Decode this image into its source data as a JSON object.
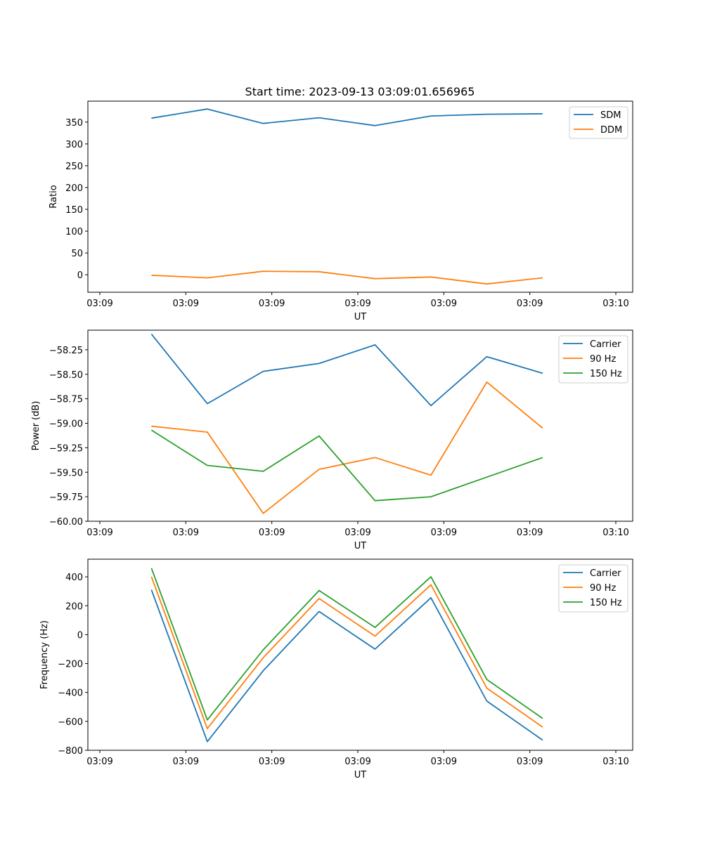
{
  "figure": {
    "title": "Start time: 2023-09-13 03:09:01.656965"
  },
  "chart_data": [
    {
      "type": "line",
      "title": "Start time: 2023-09-13 03:09:01.656965",
      "xlabel": "UT",
      "ylabel": "Ratio",
      "x": [
        0.6,
        1.25,
        1.9,
        2.55,
        3.2,
        3.85,
        4.5,
        5.15
      ],
      "xlim": [
        0.0,
        5.9
      ],
      "xticks": [
        0.0,
        1.0,
        2.0,
        3.0,
        4.0,
        5.0,
        6.0
      ],
      "xticklabels": [
        "03:09",
        "03:09",
        "03:09",
        "03:09",
        "03:09",
        "03:09",
        "03:10"
      ],
      "ylim": [
        -40,
        398
      ],
      "yticks": [
        0,
        50,
        100,
        150,
        200,
        250,
        300,
        350
      ],
      "legend_position": "top-right",
      "series": [
        {
          "name": "SDM",
          "color": "#1f77b4",
          "values": [
            359,
            380,
            347,
            360,
            342,
            364,
            368,
            369
          ]
        },
        {
          "name": "DDM",
          "color": "#ff7f0e",
          "values": [
            -1,
            -7,
            8,
            7,
            -9,
            -5,
            -21,
            -7
          ]
        }
      ]
    },
    {
      "type": "line",
      "xlabel": "UT",
      "ylabel": "Power (dB)",
      "x": [
        0.6,
        1.25,
        1.9,
        2.55,
        3.2,
        3.85,
        4.5,
        5.15
      ],
      "xlim": [
        0.0,
        5.9
      ],
      "xticks": [
        0.0,
        1.0,
        2.0,
        3.0,
        4.0,
        5.0,
        6.0
      ],
      "xticklabels": [
        "03:09",
        "03:09",
        "03:09",
        "03:09",
        "03:09",
        "03:09",
        "03:10"
      ],
      "ylim": [
        -60.0,
        -58.05
      ],
      "yticks": [
        -60.0,
        -59.75,
        -59.5,
        -59.25,
        -59.0,
        -58.75,
        -58.5,
        -58.25
      ],
      "yticklabels": [
        "−60.00",
        "−59.75",
        "−59.50",
        "−59.25",
        "−59.00",
        "−58.75",
        "−58.50",
        "−58.25"
      ],
      "legend_position": "top-right",
      "series": [
        {
          "name": "Carrier",
          "color": "#1f77b4",
          "values": [
            -58.09,
            -58.8,
            -58.47,
            -58.39,
            -58.2,
            -58.82,
            -58.32,
            -58.49
          ]
        },
        {
          "name": "90 Hz",
          "color": "#ff7f0e",
          "values": [
            -59.03,
            -59.09,
            -59.92,
            -59.47,
            -59.35,
            -59.53,
            -58.58,
            -59.05
          ]
        },
        {
          "name": "150 Hz",
          "color": "#2ca02c",
          "values": [
            -59.07,
            -59.43,
            -59.49,
            -59.13,
            -59.79,
            -59.75,
            -59.55,
            -59.35
          ]
        }
      ]
    },
    {
      "type": "line",
      "xlabel": "UT",
      "ylabel": "Frequency (Hz)",
      "x": [
        0.6,
        1.25,
        1.9,
        2.55,
        3.2,
        3.85,
        4.5,
        5.15
      ],
      "xlim": [
        0.0,
        5.9
      ],
      "xticks": [
        0.0,
        1.0,
        2.0,
        3.0,
        4.0,
        5.0,
        6.0
      ],
      "xticklabels": [
        "03:09",
        "03:09",
        "03:09",
        "03:09",
        "03:09",
        "03:09",
        "03:10"
      ],
      "ylim": [
        -800,
        522
      ],
      "yticks": [
        -800,
        -600,
        -400,
        -200,
        0,
        200,
        400
      ],
      "yticklabels": [
        "−800",
        "−600",
        "−400",
        "−200",
        "0",
        "200",
        "400"
      ],
      "legend_position": "top-right",
      "series": [
        {
          "name": "Carrier",
          "color": "#1f77b4",
          "values": [
            310,
            -740,
            -250,
            160,
            -100,
            255,
            -460,
            -730
          ]
        },
        {
          "name": "90 Hz",
          "color": "#ff7f0e",
          "values": [
            400,
            -650,
            -160,
            250,
            -10,
            345,
            -370,
            -640
          ]
        },
        {
          "name": "150 Hz",
          "color": "#2ca02c",
          "values": [
            460,
            -590,
            -105,
            305,
            50,
            400,
            -310,
            -580
          ]
        }
      ]
    }
  ]
}
